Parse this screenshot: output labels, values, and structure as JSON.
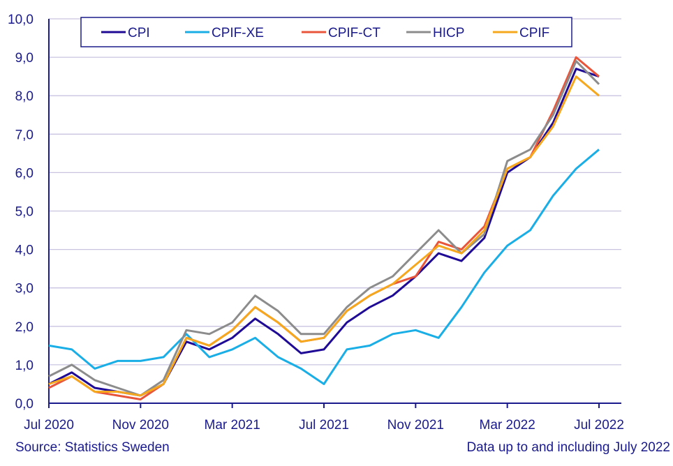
{
  "chart_data": {
    "type": "line",
    "x_labels": [
      "Jul 2020",
      "Aug 2020",
      "Sep 2020",
      "Oct 2020",
      "Nov 2020",
      "Dec 2020",
      "Jan 2021",
      "Feb 2021",
      "Mar 2021",
      "Apr 2021",
      "May 2021",
      "Jun 2021",
      "Jul 2021",
      "Aug 2021",
      "Sep 2021",
      "Oct 2021",
      "Nov 2021",
      "Dec 2021",
      "Jan 2022",
      "Feb 2022",
      "Mar 2022",
      "Apr 2022",
      "May 2022",
      "Jun 2022",
      "Jul 2022"
    ],
    "x_tick_labels": [
      "Jul 2020",
      "Nov 2020",
      "Mar 2021",
      "Jul 2021",
      "Nov 2021",
      "Mar 2022",
      "Jul 2022"
    ],
    "y_ticks": [
      "0,0",
      "1,0",
      "2,0",
      "3,0",
      "4,0",
      "5,0",
      "6,0",
      "7,0",
      "8,0",
      "9,0",
      "10,0"
    ],
    "ylim": [
      0,
      10
    ],
    "grid": "horizontal",
    "legend_position": "top",
    "series": [
      {
        "name": "CPI",
        "color": "#1f0a96",
        "values": [
          0.5,
          0.8,
          0.4,
          0.3,
          0.2,
          0.5,
          1.6,
          1.4,
          1.7,
          2.2,
          1.8,
          1.3,
          1.4,
          2.1,
          2.5,
          2.8,
          3.3,
          3.9,
          3.7,
          4.3,
          6.0,
          6.4,
          7.3,
          8.7,
          8.5
        ]
      },
      {
        "name": "CPIF-XE",
        "color": "#1aaee6",
        "values": [
          1.5,
          1.4,
          0.9,
          1.1,
          1.1,
          1.2,
          1.8,
          1.2,
          1.4,
          1.7,
          1.2,
          0.9,
          0.5,
          1.4,
          1.5,
          1.8,
          1.9,
          1.7,
          2.5,
          3.4,
          4.1,
          4.5,
          5.4,
          6.1,
          6.6
        ]
      },
      {
        "name": "CPIF-CT",
        "color": "#e8553a",
        "values": [
          0.4,
          0.7,
          0.3,
          0.2,
          0.1,
          0.5,
          1.7,
          1.5,
          1.9,
          2.5,
          2.1,
          1.6,
          1.7,
          2.4,
          2.8,
          3.1,
          3.3,
          4.2,
          4.0,
          4.6,
          6.1,
          6.4,
          7.6,
          9.0,
          8.5
        ]
      },
      {
        "name": "HICP",
        "color": "#8c8c8c",
        "values": [
          0.7,
          1.0,
          0.6,
          0.4,
          0.2,
          0.6,
          1.9,
          1.8,
          2.1,
          2.8,
          2.4,
          1.8,
          1.8,
          2.5,
          3.0,
          3.3,
          3.9,
          4.5,
          3.9,
          4.4,
          6.3,
          6.6,
          7.5,
          8.9,
          8.3
        ]
      },
      {
        "name": "CPIF",
        "color": "#f5a81e",
        "values": [
          0.5,
          0.7,
          0.3,
          0.3,
          0.2,
          0.5,
          1.7,
          1.5,
          1.9,
          2.5,
          2.1,
          1.6,
          1.7,
          2.4,
          2.8,
          3.1,
          3.6,
          4.1,
          3.9,
          4.5,
          6.1,
          6.4,
          7.2,
          8.5,
          8.0
        ]
      }
    ]
  },
  "footer": {
    "source": "Source: Statistics Sweden",
    "note": "Data up to and including July 2022"
  }
}
